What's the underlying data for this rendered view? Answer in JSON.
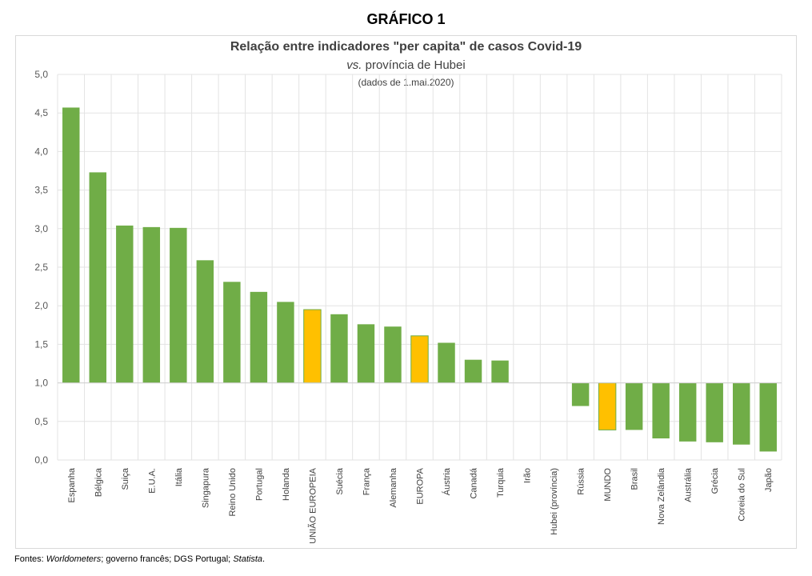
{
  "figure_label": "GRÁFICO 1",
  "footer": {
    "prefix": "Fontes: ",
    "src1": "Worldometers",
    "sep1": "; governo francês; DGS Portugal; ",
    "src2": "Statista",
    "suffix": "."
  },
  "chart_data": {
    "type": "bar",
    "title": "Relação entre indicadores \"per capita\" de casos Covid-19",
    "subtitle_em": "vs.",
    "subtitle_rest": " província de Hubei",
    "note": "(dados de 1.mai.2020)",
    "baseline": 1.0,
    "ylim": [
      0,
      5
    ],
    "yticks": [
      "0,0",
      "0,5",
      "1,0",
      "1,5",
      "2,0",
      "2,5",
      "3,0",
      "3,5",
      "4,0",
      "4,5",
      "5,0"
    ],
    "grid": true,
    "colors": {
      "default": "#70ad47",
      "highlight": "#ffc000",
      "highlight_border": "#70ad47"
    },
    "categories": [
      "Espanha",
      "Bélgica",
      "Suiça",
      "E.U.A.",
      "Itália",
      "Singapura",
      "Reino Unido",
      "Portugal",
      "Holanda",
      "UNIÃO EUROPEIA",
      "Suécia",
      "França",
      "Alemanha",
      "EUROPA",
      "Áustria",
      "Canadá",
      "Turquia",
      "Irão",
      "Hubei (província)",
      "Rússia",
      "MUNDO",
      "Brasil",
      "Nova Zelândia",
      "Austrália",
      "Grécia",
      "Coreia do Sul",
      "Japão"
    ],
    "values": [
      4.57,
      3.73,
      3.04,
      3.02,
      3.01,
      2.59,
      2.31,
      2.18,
      2.05,
      1.95,
      1.89,
      1.76,
      1.73,
      1.61,
      1.52,
      1.3,
      1.29,
      1.0,
      1.0,
      0.7,
      0.39,
      0.39,
      0.28,
      0.24,
      0.23,
      0.2,
      0.11
    ],
    "highlighted": [
      "UNIÃO EUROPEIA",
      "EUROPA",
      "MUNDO"
    ]
  }
}
